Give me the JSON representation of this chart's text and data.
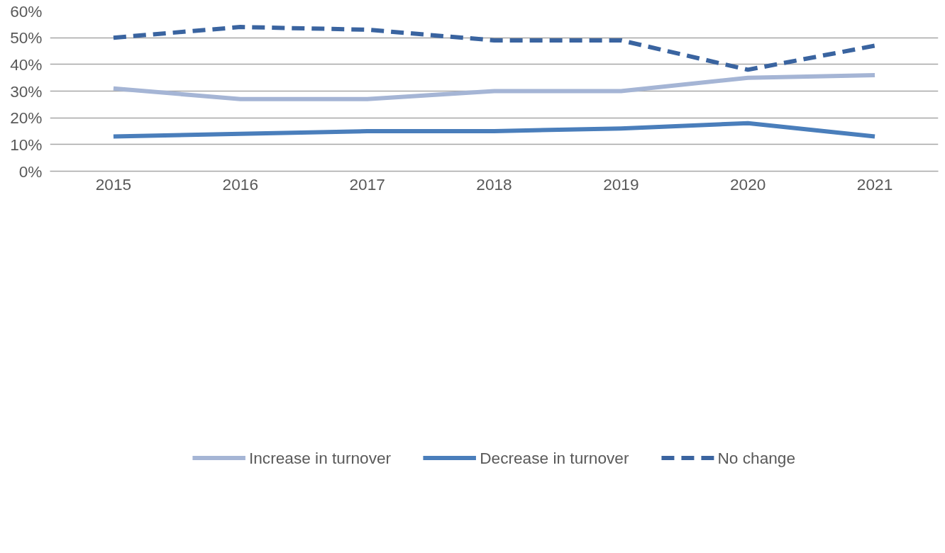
{
  "chart_data": {
    "type": "line",
    "categories": [
      "2015",
      "2016",
      "2017",
      "2018",
      "2019",
      "2020",
      "2021"
    ],
    "series": [
      {
        "name": "Increase in turnover",
        "color": "#a5b5d5",
        "line_style": "solid",
        "values": [
          31,
          27,
          27,
          30,
          30,
          35,
          36
        ]
      },
      {
        "name": "Decrease in turnover",
        "color": "#4a7ebb",
        "line_style": "solid",
        "values": [
          13,
          14,
          15,
          15,
          16,
          18,
          13
        ]
      },
      {
        "name": "No change",
        "color": "#3a64a0",
        "line_style": "dashed",
        "values": [
          50,
          54,
          53,
          49,
          49,
          38,
          47
        ]
      }
    ],
    "ylim": [
      0,
      60
    ],
    "yticks": [
      {
        "value": 0,
        "label": "0%"
      },
      {
        "value": 10,
        "label": "10%"
      },
      {
        "value": 20,
        "label": "20%"
      },
      {
        "value": 30,
        "label": "30%"
      },
      {
        "value": 40,
        "label": "40%"
      },
      {
        "value": 50,
        "label": "50%"
      },
      {
        "value": 60,
        "label": "60%"
      }
    ],
    "grid": "y",
    "legend": "bottom",
    "marker": "none"
  }
}
